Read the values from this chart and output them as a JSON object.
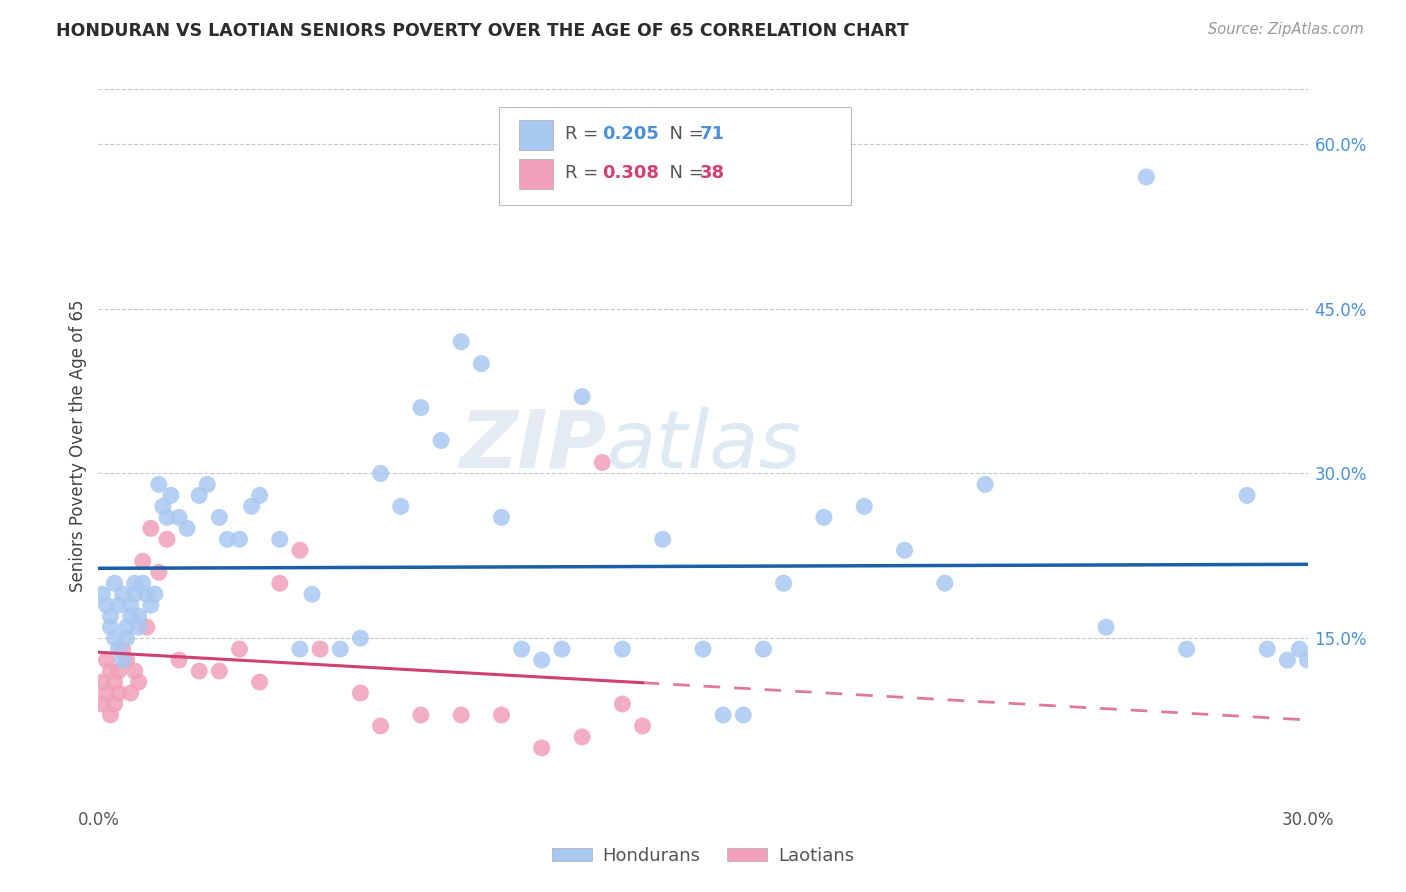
{
  "title": "HONDURAN VS LAOTIAN SENIORS POVERTY OVER THE AGE OF 65 CORRELATION CHART",
  "source": "Source: ZipAtlas.com",
  "ylabel": "Seniors Poverty Over the Age of 65",
  "xlim": [
    0.0,
    0.3
  ],
  "ylim": [
    0.0,
    0.65
  ],
  "yticks": [
    0.15,
    0.3,
    0.45,
    0.6
  ],
  "ytick_labels": [
    "15.0%",
    "30.0%",
    "45.0%",
    "60.0%"
  ],
  "xticks": [
    0.0,
    0.05,
    0.1,
    0.15,
    0.2,
    0.25,
    0.3
  ],
  "xtick_labels": [
    "0.0%",
    "",
    "",
    "",
    "",
    "",
    "30.0%"
  ],
  "honduran_color": "#a8c8f0",
  "laotian_color": "#f0a0b8",
  "honduran_line_color": "#1a5fa8",
  "laotian_line_color": "#d04070",
  "r_honduran": "0.205",
  "n_honduran": "71",
  "r_laotian": "0.308",
  "n_laotian": "38",
  "watermark_text": "ZIPatlas",
  "honduran_x": [
    0.001,
    0.002,
    0.003,
    0.003,
    0.004,
    0.004,
    0.005,
    0.005,
    0.006,
    0.006,
    0.007,
    0.007,
    0.008,
    0.008,
    0.009,
    0.009,
    0.01,
    0.01,
    0.011,
    0.012,
    0.013,
    0.014,
    0.015,
    0.016,
    0.017,
    0.018,
    0.02,
    0.022,
    0.025,
    0.027,
    0.03,
    0.032,
    0.035,
    0.038,
    0.04,
    0.045,
    0.05,
    0.053,
    0.06,
    0.065,
    0.07,
    0.075,
    0.08,
    0.085,
    0.09,
    0.095,
    0.1,
    0.105,
    0.11,
    0.115,
    0.12,
    0.13,
    0.14,
    0.15,
    0.155,
    0.16,
    0.165,
    0.17,
    0.18,
    0.19,
    0.2,
    0.21,
    0.22,
    0.25,
    0.26,
    0.27,
    0.285,
    0.29,
    0.295,
    0.298,
    0.3
  ],
  "honduran_y": [
    0.19,
    0.18,
    0.17,
    0.16,
    0.2,
    0.15,
    0.18,
    0.14,
    0.13,
    0.19,
    0.16,
    0.15,
    0.18,
    0.17,
    0.19,
    0.2,
    0.17,
    0.16,
    0.2,
    0.19,
    0.18,
    0.19,
    0.29,
    0.27,
    0.26,
    0.28,
    0.26,
    0.25,
    0.28,
    0.29,
    0.26,
    0.24,
    0.24,
    0.27,
    0.28,
    0.24,
    0.14,
    0.19,
    0.14,
    0.15,
    0.3,
    0.27,
    0.36,
    0.33,
    0.42,
    0.4,
    0.26,
    0.14,
    0.13,
    0.14,
    0.37,
    0.14,
    0.24,
    0.14,
    0.08,
    0.08,
    0.14,
    0.2,
    0.26,
    0.27,
    0.23,
    0.2,
    0.29,
    0.16,
    0.57,
    0.14,
    0.28,
    0.14,
    0.13,
    0.14,
    0.13
  ],
  "laotian_x": [
    0.001,
    0.001,
    0.002,
    0.002,
    0.003,
    0.003,
    0.004,
    0.004,
    0.005,
    0.005,
    0.006,
    0.007,
    0.008,
    0.009,
    0.01,
    0.011,
    0.012,
    0.013,
    0.015,
    0.017,
    0.02,
    0.025,
    0.03,
    0.035,
    0.04,
    0.045,
    0.05,
    0.055,
    0.065,
    0.07,
    0.08,
    0.09,
    0.1,
    0.11,
    0.12,
    0.125,
    0.13,
    0.135
  ],
  "laotian_y": [
    0.11,
    0.09,
    0.13,
    0.1,
    0.12,
    0.08,
    0.11,
    0.09,
    0.1,
    0.12,
    0.14,
    0.13,
    0.1,
    0.12,
    0.11,
    0.22,
    0.16,
    0.25,
    0.21,
    0.24,
    0.13,
    0.12,
    0.12,
    0.14,
    0.11,
    0.2,
    0.23,
    0.14,
    0.1,
    0.07,
    0.08,
    0.08,
    0.08,
    0.05,
    0.06,
    0.31,
    0.09,
    0.07
  ]
}
